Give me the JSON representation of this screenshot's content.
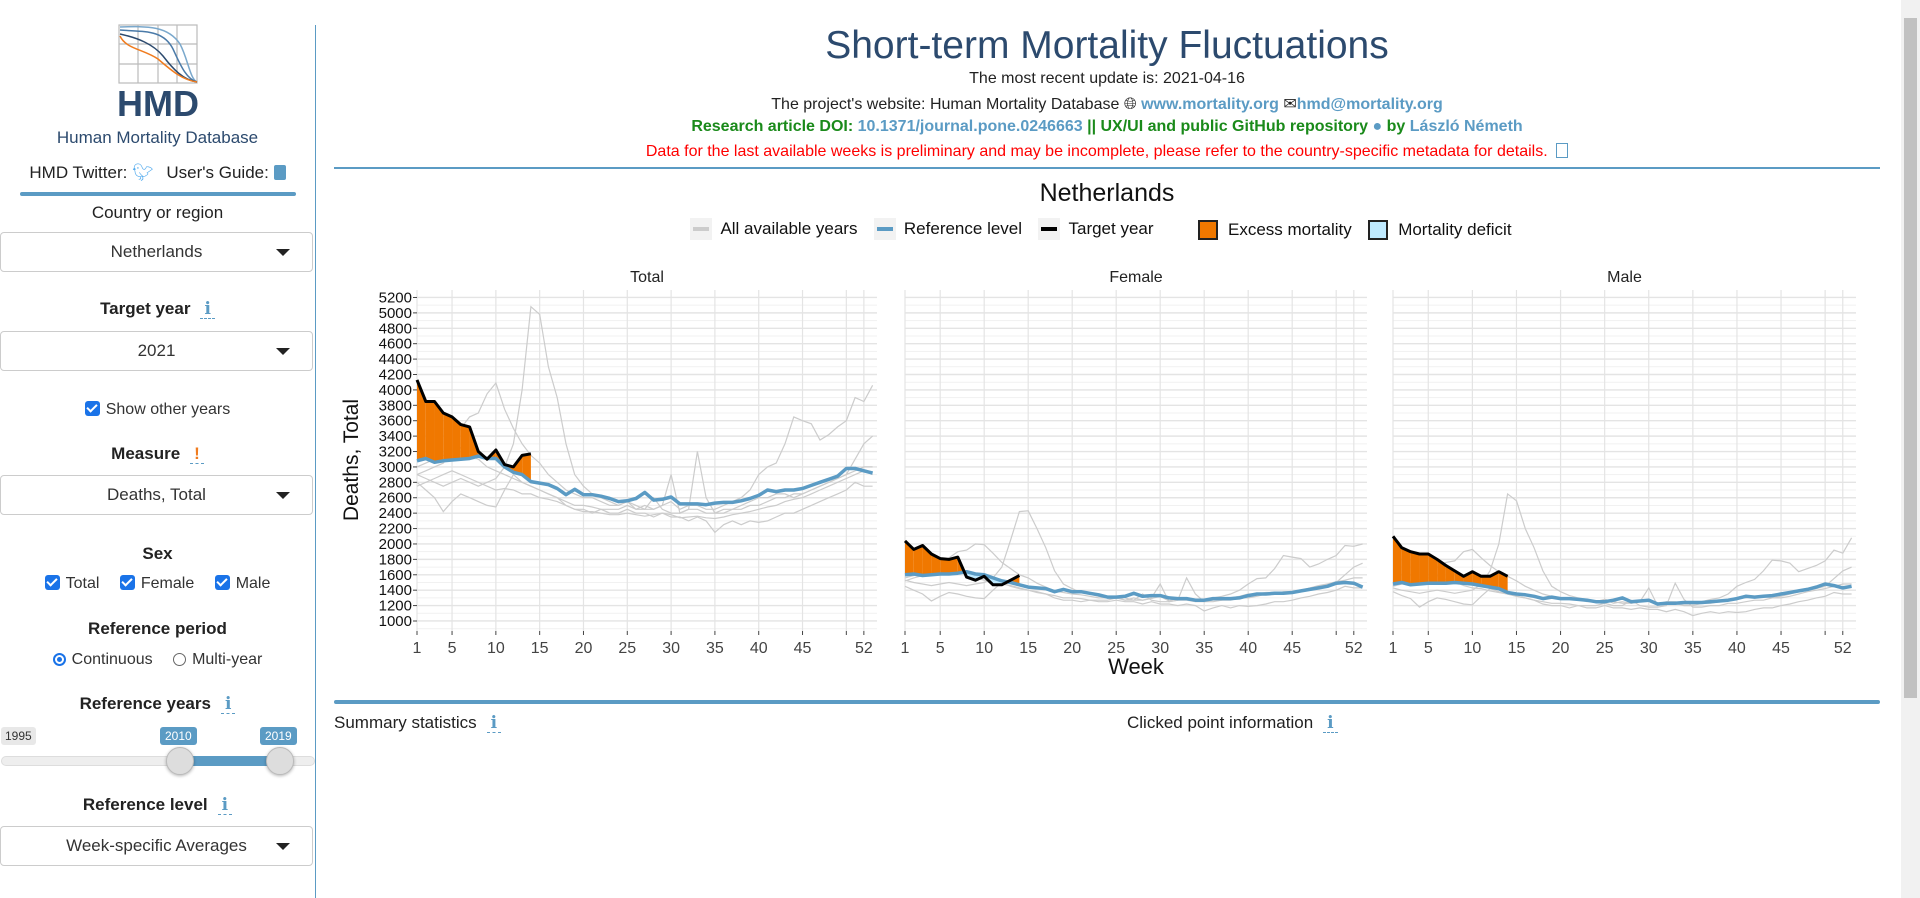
{
  "sidebar": {
    "logo_text": "HMD",
    "org_name": "Human Mortality Database",
    "twitter_label": "HMD Twitter:",
    "guide_label": "User's Guide:",
    "country_label": "Country or region",
    "country_value": "Netherlands",
    "target_year_label": "Target year",
    "target_year_value": "2021",
    "show_other_years_label": "Show other years",
    "show_other_years_checked": true,
    "measure_label": "Measure",
    "measure_value": "Deaths, Total",
    "sex_label": "Sex",
    "sex_options": [
      {
        "label": "Total",
        "checked": true
      },
      {
        "label": "Female",
        "checked": true
      },
      {
        "label": "Male",
        "checked": true
      }
    ],
    "ref_period_label": "Reference period",
    "ref_period_options": [
      {
        "label": "Continuous",
        "selected": true
      },
      {
        "label": "Multi-year",
        "selected": false
      }
    ],
    "ref_years_label": "Reference years",
    "ref_years_min": "1995",
    "ref_years_from": "2010",
    "ref_years_to": "2019",
    "ref_level_label": "Reference level",
    "ref_level_value": "Week-specific Averages",
    "info_glyph": "i",
    "warn_glyph": "!"
  },
  "header": {
    "title": "Short-term Mortality Fluctuations",
    "update": "The most recent update is: 2021-04-16",
    "website_prefix": "The project's website: Human Mortality Database",
    "website_link": "www.mortality.org",
    "email_link": "hmd@mortality.org",
    "doi_prefix": "Research article DOI:",
    "doi_link": "10.1371/journal.pone.0246663",
    "repo_text": "|| UX/UI and public GitHub repository",
    "by_text": "by",
    "author_link": "László Németh",
    "warning": "Data for the last available weeks is preliminary and may be incomplete, please refer to the country-specific metadata for details."
  },
  "legend": {
    "all_years": "All available years",
    "reference": "Reference level",
    "target": "Target year",
    "excess": "Excess mortality",
    "deficit": "Mortality deficit"
  },
  "colors": {
    "accent": "#5b9bc4",
    "title": "#2c4a6e",
    "green": "#1a8a1a",
    "red": "#ff0000",
    "excess": "#f07800",
    "deficit": "#bfeaff",
    "other_years": "#cccccc",
    "reference": "#5b9bc4",
    "target": "#000000"
  },
  "bottom": {
    "summary_label": "Summary statistics",
    "clicked_label": "Clicked point information"
  },
  "chart_data": {
    "type": "line",
    "title": "Netherlands",
    "xlabel": "Week",
    "ylabel": "Deaths, Total",
    "xlim": [
      1,
      53.5
    ],
    "ylim": [
      870,
      5297
    ],
    "x_ticks": [
      1,
      5,
      10,
      15,
      20,
      25,
      30,
      35,
      40,
      45,
      52
    ],
    "y_ticks": [
      1000,
      1200,
      1400,
      1600,
      1800,
      2000,
      2200,
      2400,
      2600,
      2800,
      3000,
      3200,
      3400,
      3600,
      3800,
      4000,
      4200,
      4400,
      4600,
      4800,
      5000,
      5200
    ],
    "grid": true,
    "legend_position": "top",
    "panels": [
      {
        "name": "Total",
        "reference": [
          3080,
          3110,
          3060,
          3080,
          3090,
          3100,
          3110,
          3140,
          3110,
          3110,
          3000,
          2930,
          2900,
          2810,
          2790,
          2770,
          2720,
          2640,
          2710,
          2640,
          2640,
          2620,
          2590,
          2550,
          2560,
          2590,
          2670,
          2570,
          2580,
          2610,
          2520,
          2520,
          2520,
          2510,
          2530,
          2540,
          2540,
          2560,
          2590,
          2630,
          2700,
          2680,
          2700,
          2700,
          2720,
          2760,
          2800,
          2840,
          2880,
          2980,
          2980,
          2950,
          2920
        ],
        "target": [
          4130,
          3850,
          3850,
          3700,
          3650,
          3550,
          3520,
          3200,
          3100,
          3220,
          3030,
          3000,
          3150,
          3170
        ],
        "other_years": [
          [
            2900,
            2850,
            2800,
            2750,
            2800,
            2850,
            2800,
            2750,
            2800,
            2850,
            3000,
            3300,
            4000,
            5080,
            4980,
            4300,
            3900,
            3300,
            2900,
            2750,
            2650,
            2600,
            2550,
            2500,
            2550,
            2450,
            2500,
            2450,
            2500,
            2550,
            2450,
            2500,
            2500,
            2450,
            2450,
            2500,
            2550,
            2600,
            2700,
            2900,
            3000,
            3050,
            3300,
            3650,
            3600,
            3560,
            3350,
            3420,
            3520,
            3600,
            3900,
            3850,
            4060
          ],
          [
            2900,
            2950,
            3000,
            3050,
            3200,
            3500,
            3650,
            3700,
            3950,
            4090,
            3750,
            3500,
            3300,
            3150,
            3050,
            2900,
            2800,
            2700,
            2650,
            2600,
            2600,
            2550,
            2500,
            2500,
            2550,
            2500,
            2450,
            2450,
            2500,
            2900,
            2400,
            2450,
            2450,
            2400,
            2400,
            2450,
            2450,
            2500,
            2550,
            2600,
            2600,
            2650,
            2650,
            2600,
            2650,
            2700,
            2750,
            2800,
            2850,
            2900,
            3100,
            3300,
            3400
          ],
          [
            2800,
            2700,
            2600,
            2420,
            2550,
            2650,
            2600,
            2550,
            2500,
            2480,
            2700,
            2900,
            2800,
            2750,
            2700,
            2650,
            2600,
            2500,
            2450,
            2450,
            2400,
            2450,
            2400,
            2400,
            2450,
            2400,
            2400,
            2350,
            2400,
            2350,
            2350,
            2300,
            2350,
            2300,
            2150,
            2250,
            2300,
            2250,
            2300,
            2280,
            2300,
            2350,
            2400,
            2400,
            2450,
            2500,
            2550,
            2600,
            2650,
            2700,
            2800,
            2750,
            2750
          ],
          [
            3000,
            3050,
            3100,
            3150,
            3200,
            3250,
            3150,
            3100,
            3000,
            2950,
            2900,
            2850,
            2800,
            2750,
            2700,
            2650,
            2600,
            2550,
            2500,
            2500,
            2480,
            2450,
            2450,
            2450,
            2500,
            2450,
            2450,
            2600,
            2450,
            2400,
            2400,
            2450,
            3200,
            2600,
            2400,
            2400,
            2450,
            2450,
            2500,
            2500,
            2550,
            2600,
            2600,
            2650,
            2650,
            2700,
            2750,
            2800,
            2850,
            2900,
            2950,
            3000,
            3000
          ],
          [
            2750,
            2800,
            2850,
            2900,
            2950,
            2900,
            2850,
            2800,
            2750,
            2700,
            2720,
            2700,
            2650,
            2650,
            2600,
            2580,
            2550,
            2500,
            2450,
            2420,
            2420,
            2400,
            2380,
            2380,
            2400,
            2380,
            2360,
            2380,
            2400,
            2380,
            2340,
            2350,
            2360,
            2340,
            2330,
            2350,
            2380,
            2400,
            2420,
            2450,
            2480,
            2500,
            2550,
            2580,
            2600,
            2650,
            2700,
            2750,
            2800,
            2850,
            2900,
            2950,
            2900
          ]
        ]
      },
      {
        "name": "Female",
        "reference": [
          1600,
          1610,
          1590,
          1600,
          1610,
          1610,
          1620,
          1640,
          1610,
          1600,
          1560,
          1520,
          1500,
          1470,
          1440,
          1430,
          1420,
          1380,
          1410,
          1380,
          1380,
          1360,
          1340,
          1310,
          1310,
          1320,
          1360,
          1320,
          1330,
          1330,
          1300,
          1290,
          1290,
          1270,
          1270,
          1290,
          1290,
          1290,
          1300,
          1330,
          1350,
          1350,
          1360,
          1360,
          1370,
          1390,
          1410,
          1430,
          1450,
          1490,
          1500,
          1490,
          1440
        ],
        "target": [
          2040,
          1930,
          1980,
          1870,
          1810,
          1800,
          1830,
          1570,
          1530,
          1580,
          1470,
          1470,
          1530,
          1590
        ],
        "other_years": [
          [
            1530,
            1500,
            1480,
            1460,
            1480,
            1500,
            1480,
            1460,
            1480,
            1500,
            1560,
            1700,
            2050,
            2420,
            2430,
            2200,
            1950,
            1650,
            1480,
            1420,
            1370,
            1350,
            1320,
            1300,
            1320,
            1270,
            1300,
            1270,
            1290,
            1320,
            1260,
            1300,
            1300,
            1270,
            1270,
            1300,
            1320,
            1350,
            1400,
            1480,
            1550,
            1560,
            1680,
            1850,
            1830,
            1810,
            1700,
            1740,
            1800,
            1850,
            1980,
            1970,
            2000
          ],
          [
            1520,
            1560,
            1590,
            1620,
            1680,
            1820,
            1900,
            1920,
            2000,
            1990,
            1880,
            1760,
            1680,
            1600,
            1560,
            1490,
            1440,
            1390,
            1370,
            1350,
            1340,
            1320,
            1300,
            1300,
            1320,
            1300,
            1270,
            1270,
            1300,
            1480,
            1250,
            1270,
            1270,
            1250,
            1250,
            1270,
            1270,
            1300,
            1320,
            1350,
            1350,
            1370,
            1370,
            1350,
            1370,
            1400,
            1420,
            1450,
            1470,
            1500,
            1600,
            1700,
            1750
          ],
          [
            1450,
            1400,
            1350,
            1260,
            1320,
            1370,
            1350,
            1320,
            1300,
            1290,
            1400,
            1500,
            1450,
            1420,
            1400,
            1370,
            1350,
            1300,
            1270,
            1270,
            1250,
            1270,
            1250,
            1250,
            1270,
            1250,
            1250,
            1220,
            1250,
            1220,
            1220,
            1200,
            1220,
            1200,
            1130,
            1170,
            1200,
            1170,
            1200,
            1190,
            1200,
            1220,
            1250,
            1250,
            1270,
            1300,
            1320,
            1350,
            1370,
            1400,
            1450,
            1430,
            1430
          ],
          [
            1560,
            1590,
            1610,
            1640,
            1660,
            1690,
            1640,
            1610,
            1560,
            1530,
            1510,
            1480,
            1460,
            1430,
            1400,
            1380,
            1350,
            1330,
            1300,
            1300,
            1290,
            1270,
            1270,
            1270,
            1300,
            1270,
            1270,
            1350,
            1270,
            1250,
            1250,
            1270,
            1560,
            1350,
            1250,
            1250,
            1270,
            1270,
            1300,
            1300,
            1320,
            1350,
            1350,
            1380,
            1380,
            1400,
            1430,
            1460,
            1480,
            1510,
            1530,
            1560,
            1560
          ]
        ]
      },
      {
        "name": "Male",
        "reference": [
          1480,
          1500,
          1470,
          1480,
          1490,
          1490,
          1490,
          1500,
          1490,
          1480,
          1460,
          1440,
          1420,
          1370,
          1350,
          1340,
          1320,
          1290,
          1310,
          1290,
          1290,
          1280,
          1270,
          1250,
          1250,
          1270,
          1300,
          1250,
          1260,
          1270,
          1220,
          1230,
          1230,
          1240,
          1240,
          1240,
          1250,
          1260,
          1270,
          1290,
          1320,
          1310,
          1320,
          1330,
          1350,
          1370,
          1390,
          1410,
          1440,
          1480,
          1460,
          1430,
          1450
        ],
        "target": [
          2100,
          1950,
          1900,
          1870,
          1870,
          1800,
          1720,
          1650,
          1580,
          1640,
          1580,
          1580,
          1640,
          1580
        ],
        "other_years": [
          [
            1430,
            1400,
            1380,
            1360,
            1380,
            1400,
            1380,
            1360,
            1380,
            1400,
            1480,
            1650,
            2000,
            2650,
            2560,
            2200,
            1950,
            1650,
            1450,
            1380,
            1330,
            1300,
            1280,
            1250,
            1280,
            1230,
            1250,
            1230,
            1250,
            1280,
            1220,
            1250,
            1250,
            1220,
            1220,
            1250,
            1280,
            1300,
            1350,
            1450,
            1500,
            1540,
            1650,
            1790,
            1780,
            1750,
            1640,
            1680,
            1720,
            1780,
            1920,
            1880,
            2080
          ],
          [
            1450,
            1480,
            1500,
            1530,
            1600,
            1700,
            1760,
            1780,
            1900,
            1930,
            1820,
            1720,
            1640,
            1580,
            1520,
            1450,
            1400,
            1350,
            1320,
            1300,
            1300,
            1280,
            1250,
            1250,
            1280,
            1250,
            1230,
            1230,
            1250,
            1430,
            1200,
            1230,
            1230,
            1200,
            1200,
            1230,
            1230,
            1250,
            1280,
            1300,
            1300,
            1320,
            1320,
            1300,
            1320,
            1350,
            1380,
            1400,
            1420,
            1450,
            1550,
            1650,
            1700
          ],
          [
            1380,
            1330,
            1290,
            1180,
            1250,
            1300,
            1280,
            1250,
            1220,
            1210,
            1320,
            1420,
            1380,
            1350,
            1320,
            1300,
            1270,
            1220,
            1200,
            1200,
            1170,
            1200,
            1170,
            1170,
            1200,
            1170,
            1170,
            1150,
            1170,
            1150,
            1150,
            1120,
            1150,
            1120,
            1070,
            1100,
            1120,
            1100,
            1120,
            1110,
            1120,
            1150,
            1170,
            1170,
            1200,
            1220,
            1250,
            1270,
            1300,
            1320,
            1370,
            1350,
            1350
          ],
          [
            1460,
            1490,
            1510,
            1540,
            1560,
            1590,
            1540,
            1510,
            1460,
            1430,
            1420,
            1390,
            1370,
            1350,
            1320,
            1300,
            1270,
            1250,
            1230,
            1230,
            1220,
            1200,
            1200,
            1200,
            1230,
            1200,
            1200,
            1270,
            1200,
            1180,
            1180,
            1200,
            1490,
            1280,
            1180,
            1180,
            1200,
            1200,
            1230,
            1230,
            1250,
            1270,
            1270,
            1300,
            1300,
            1320,
            1350,
            1380,
            1400,
            1420,
            1450,
            1480,
            1480
          ]
        ]
      }
    ]
  }
}
